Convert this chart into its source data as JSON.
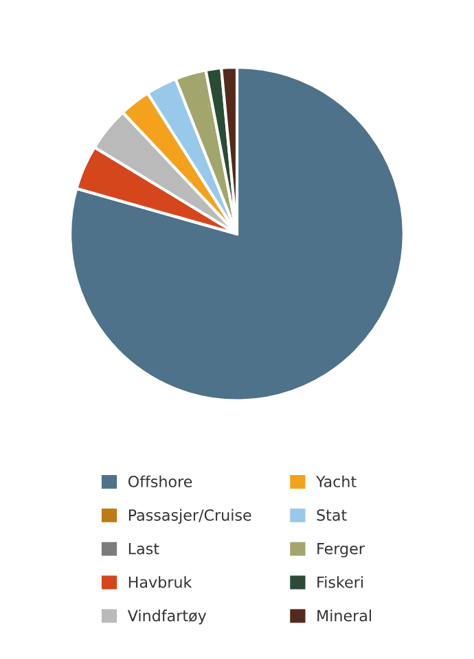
{
  "chart_data": {
    "type": "pie",
    "categories": [
      "Offshore",
      "Passasjer/Cruise",
      "Last",
      "Havbruk",
      "Vindfartøy",
      "Yacht",
      "Stat",
      "Ferger",
      "Fiskeri",
      "Mineral"
    ],
    "values": [
      79.4,
      0,
      0,
      4.3,
      4.3,
      3,
      3,
      3,
      1.5,
      1.5
    ],
    "colors": [
      "#4e7289",
      "#bd7b14",
      "#7c7c7c",
      "#d5461c",
      "#bababa",
      "#f4a11c",
      "#98c9ea",
      "#a2a66c",
      "#2a4b35",
      "#542a1d"
    ],
    "legend": "bottom"
  }
}
